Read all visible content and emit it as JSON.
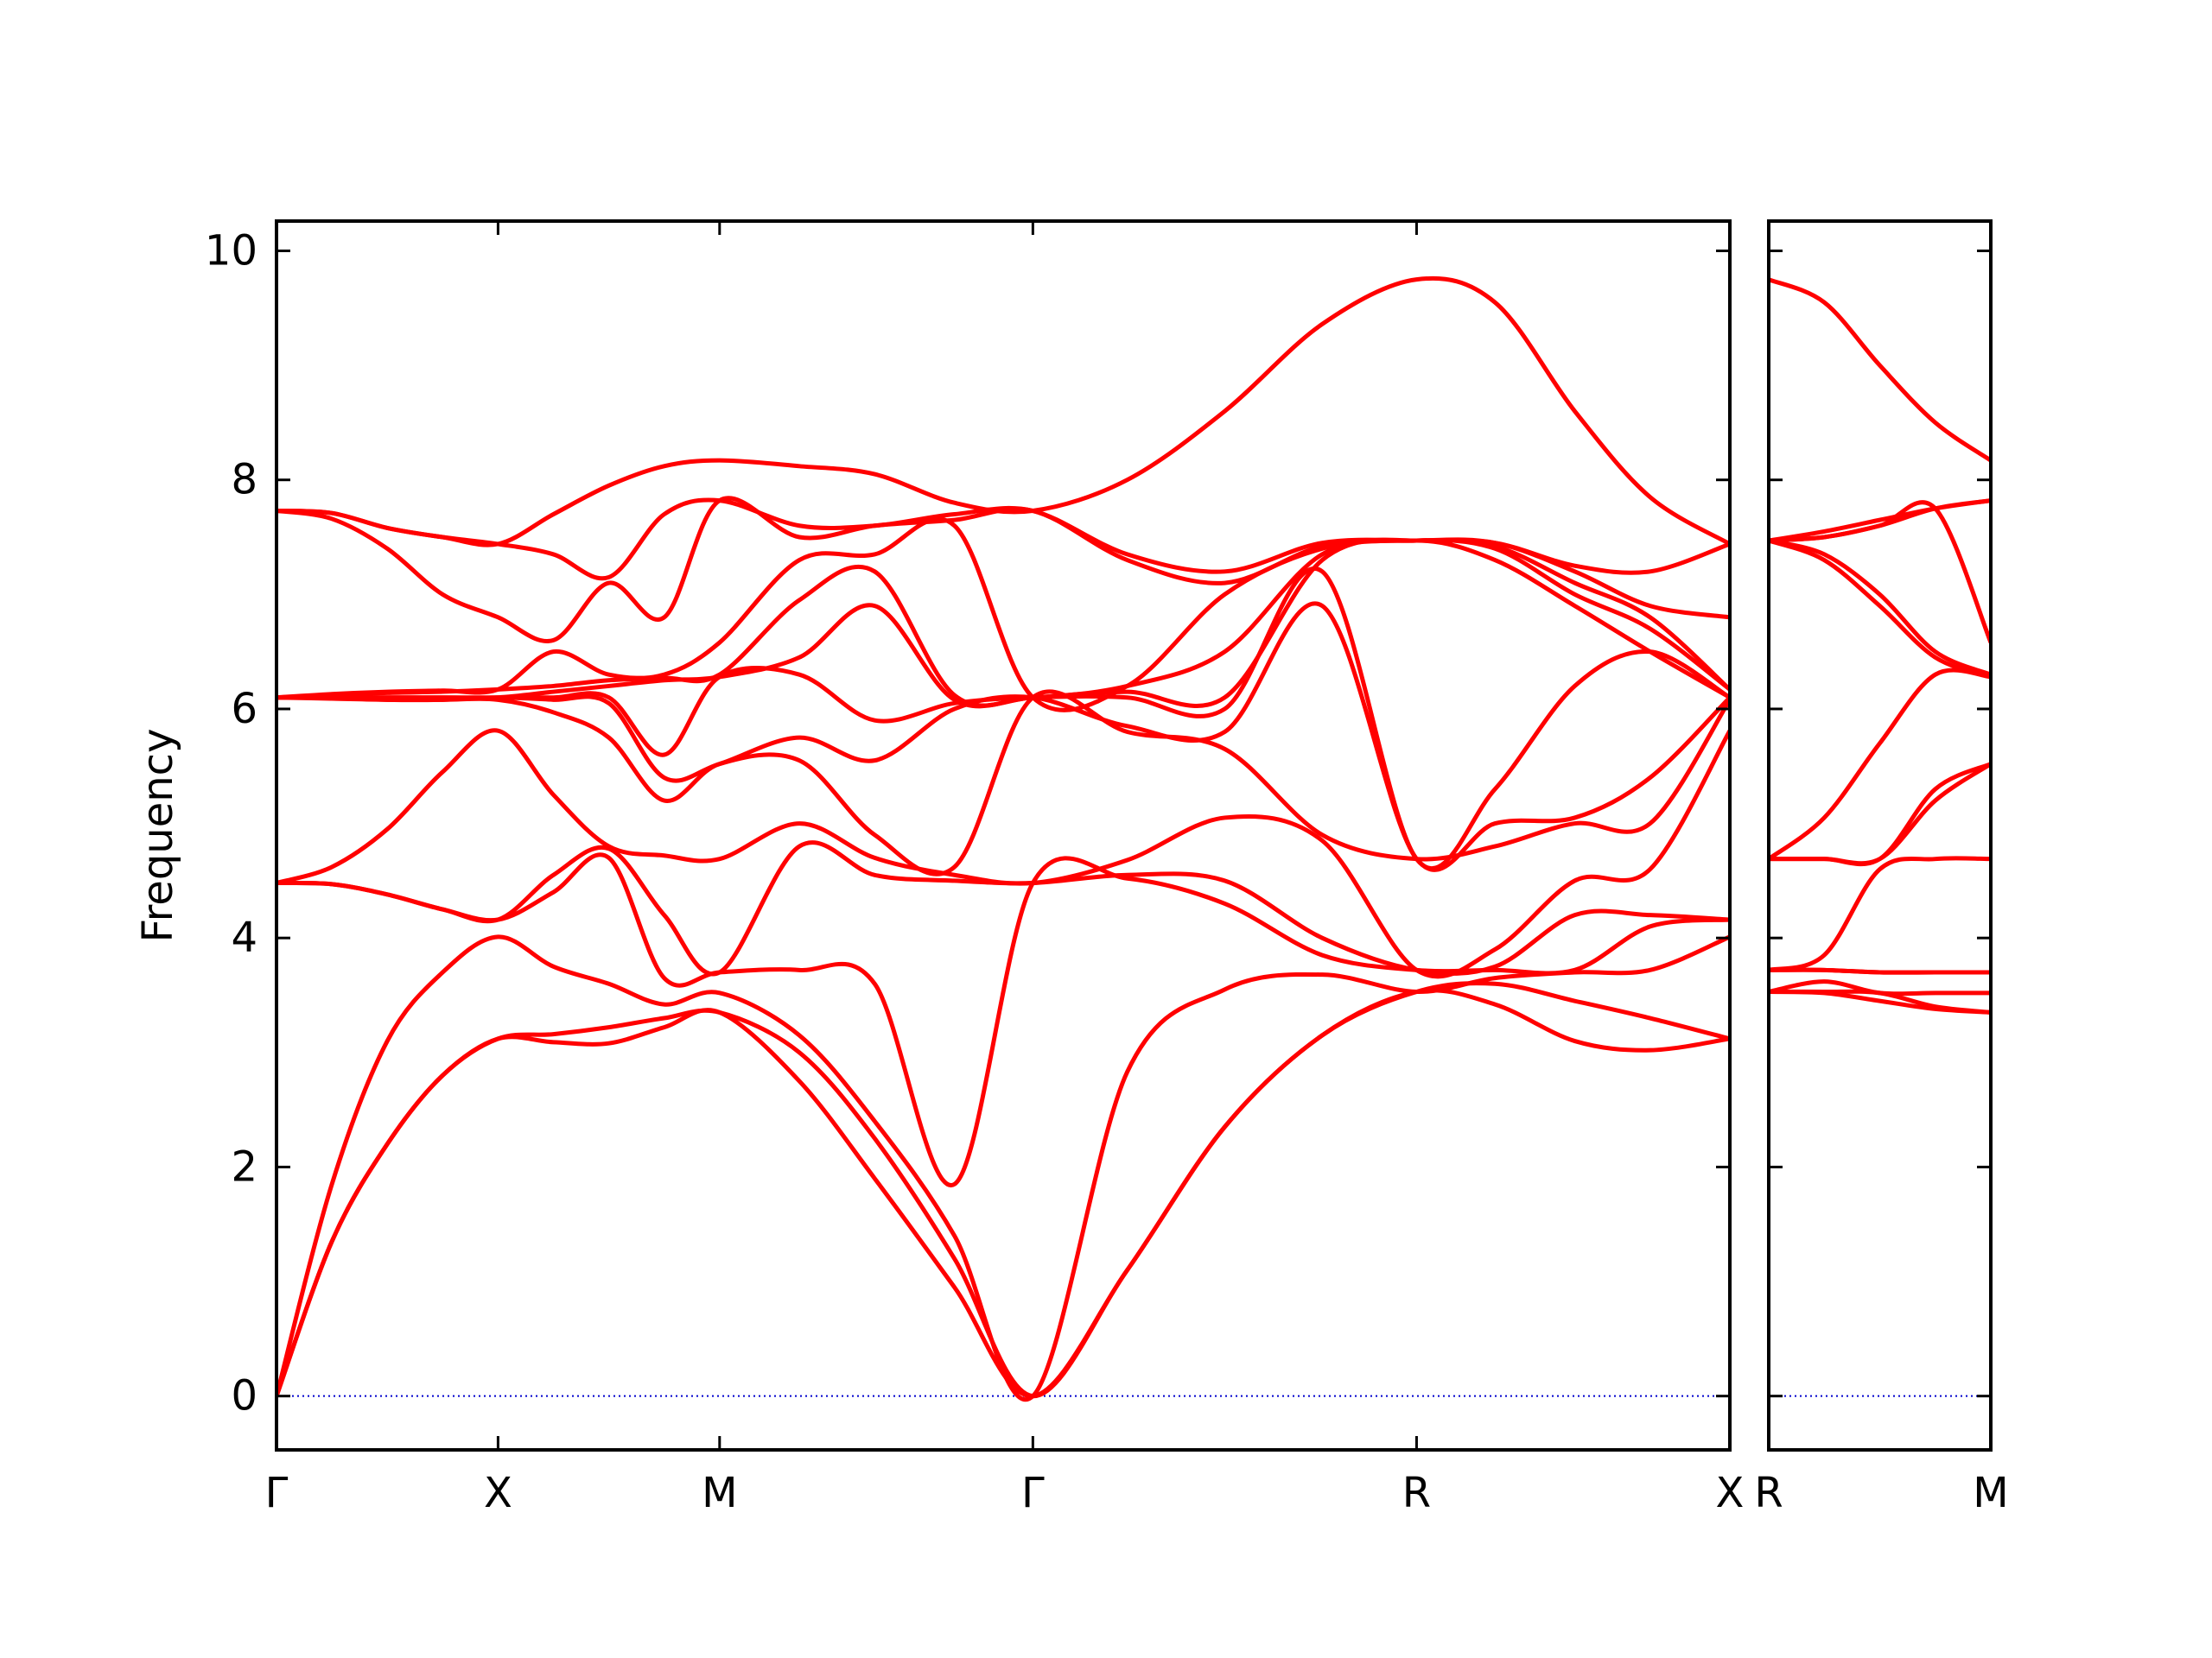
{
  "chart_data": [
    {
      "type": "line",
      "y_label": "Frequency",
      "color": "#ff0000",
      "xlim": [
        0,
        3.28
      ],
      "ylim": [
        -0.47,
        10.26
      ],
      "xticks": [
        {
          "value": 0,
          "label": "Γ"
        },
        {
          "value": 0.5,
          "label": "X"
        },
        {
          "value": 1.0,
          "label": "M"
        },
        {
          "value": 1.707,
          "label": "Γ"
        },
        {
          "value": 2.573,
          "label": "R"
        },
        {
          "value": 3.28,
          "label": "X"
        }
      ],
      "yticks": [
        0,
        2,
        4,
        6,
        8,
        10
      ],
      "ytick_labels": true,
      "reference_line": {
        "value": 0,
        "color": "#0000cc"
      },
      "x": [
        0,
        0.125,
        0.25,
        0.375,
        0.5,
        0.625,
        0.75,
        0.875,
        1.0,
        1.18,
        1.35,
        1.53,
        1.707,
        1.92,
        2.14,
        2.36,
        2.573,
        2.75,
        2.93,
        3.1,
        3.28
      ],
      "series": [
        {
          "values": [
            0,
            1.35,
            2.2,
            2.8,
            3.12,
            3.09,
            3.08,
            3.22,
            3.35,
            2.75,
            1.9,
            0.95,
            0,
            1.1,
            2.35,
            3.15,
            3.53,
            3.42,
            3.1,
            3.02,
            3.12
          ]
        },
        {
          "values": [
            0,
            1.35,
            2.2,
            2.8,
            3.12,
            3.16,
            3.22,
            3.3,
            3.35,
            3.0,
            2.25,
            1.2,
            0,
            1.1,
            2.35,
            3.15,
            3.53,
            3.6,
            3.45,
            3.3,
            3.12
          ]
        },
        {
          "values": [
            0,
            1.85,
            3.1,
            3.7,
            4.01,
            3.75,
            3.6,
            3.42,
            3.52,
            3.15,
            2.4,
            1.4,
            0,
            2.83,
            3.55,
            3.68,
            3.53,
            3.65,
            3.7,
            3.72,
            4.01
          ]
        },
        {
          "values": [
            4.48,
            4.47,
            4.38,
            4.25,
            4.16,
            4.4,
            4.7,
            3.65,
            3.7,
            3.72,
            3.6,
            1.85,
            4.48,
            4.52,
            4.3,
            3.85,
            3.72,
            3.72,
            3.72,
            4.1,
            4.16
          ]
        },
        {
          "values": [
            4.48,
            4.47,
            4.38,
            4.25,
            4.16,
            4.55,
            4.78,
            4.2,
            3.7,
            4.8,
            4.55,
            4.5,
            4.48,
            4.55,
            4.5,
            4.0,
            3.72,
            3.75,
            4.2,
            4.2,
            4.16
          ]
        },
        {
          "values": [
            4.48,
            4.62,
            4.95,
            5.45,
            5.81,
            5.25,
            4.8,
            4.72,
            4.69,
            5.0,
            4.7,
            4.55,
            4.48,
            4.68,
            5.05,
            4.85,
            3.72,
            3.9,
            4.5,
            4.6,
            5.81
          ]
        },
        {
          "values": [
            6.1,
            6.09,
            6.08,
            6.08,
            6.08,
            5.97,
            5.75,
            5.2,
            5.52,
            5.55,
            4.9,
            4.62,
            6.1,
            5.8,
            5.65,
            4.9,
            4.69,
            4.8,
            5.0,
            5.0,
            6.08
          ]
        },
        {
          "values": [
            6.1,
            6.1,
            6.08,
            6.08,
            6.1,
            6.08,
            6.05,
            5.4,
            5.52,
            5.75,
            5.55,
            6.0,
            6.1,
            5.85,
            5.8,
            6.9,
            4.69,
            5.0,
            5.05,
            5.4,
            6.1
          ]
        },
        {
          "values": [
            6.1,
            6.1,
            6.1,
            6.1,
            6.1,
            6.1,
            6.1,
            5.6,
            6.28,
            6.3,
            5.9,
            6.05,
            6.1,
            6.1,
            6.0,
            7.2,
            4.69,
            5.3,
            6.2,
            6.5,
            6.1
          ]
        },
        {
          "values": [
            6.1,
            6.1,
            6.1,
            6.1,
            6.1,
            6.15,
            6.2,
            6.25,
            6.28,
            6.45,
            6.9,
            6.08,
            6.1,
            6.15,
            6.1,
            7.3,
            7.47,
            7.3,
            6.9,
            6.5,
            6.1
          ]
        },
        {
          "values": [
            6.1,
            6.12,
            6.14,
            6.15,
            6.17,
            6.2,
            6.25,
            6.27,
            6.3,
            6.95,
            7.2,
            6.12,
            6.1,
            6.2,
            6.5,
            7.35,
            7.47,
            7.4,
            7.0,
            6.7,
            6.17
          ]
        },
        {
          "values": [
            6.1,
            6.13,
            6.15,
            6.16,
            6.17,
            6.5,
            6.3,
            6.3,
            6.58,
            7.3,
            7.35,
            7.6,
            6.1,
            6.2,
            7.0,
            7.4,
            7.47,
            7.42,
            7.1,
            6.8,
            6.17
          ]
        },
        {
          "values": [
            7.73,
            7.66,
            7.4,
            7.0,
            6.8,
            6.6,
            7.1,
            6.8,
            7.82,
            7.5,
            7.6,
            7.65,
            7.73,
            7.3,
            7.1,
            7.42,
            7.47,
            7.45,
            7.2,
            6.9,
            6.8
          ]
        },
        {
          "values": [
            7.73,
            7.71,
            7.58,
            7.5,
            7.44,
            7.35,
            7.15,
            7.7,
            7.82,
            7.6,
            7.6,
            7.7,
            7.73,
            7.35,
            7.2,
            7.45,
            7.47,
            7.45,
            7.25,
            7.2,
            7.44
          ]
        },
        {
          "values": [
            7.73,
            7.71,
            7.58,
            7.5,
            7.44,
            7.7,
            7.95,
            8.12,
            8.17,
            8.12,
            8.05,
            7.8,
            7.73,
            8.0,
            8.6,
            9.36,
            9.75,
            9.55,
            8.6,
            7.85,
            7.44
          ]
        }
      ]
    },
    {
      "type": "line",
      "color": "#ff0000",
      "xlim": [
        0,
        0.5
      ],
      "ylim": [
        -0.47,
        10.26
      ],
      "xticks": [
        {
          "value": 0,
          "label": "R"
        },
        {
          "value": 0.5,
          "label": "M"
        }
      ],
      "yticks": [
        0,
        2,
        4,
        6,
        8,
        10
      ],
      "ytick_labels": false,
      "reference_line": {
        "value": 0,
        "color": "#0000cc"
      },
      "x": [
        0,
        0.125,
        0.25,
        0.375,
        0.5
      ],
      "series": [
        {
          "values": [
            3.53,
            3.52,
            3.45,
            3.38,
            3.35
          ]
        },
        {
          "values": [
            3.53,
            3.53,
            3.52,
            3.4,
            3.35
          ]
        },
        {
          "values": [
            3.53,
            3.62,
            3.52,
            3.52,
            3.52
          ]
        },
        {
          "values": [
            3.72,
            3.72,
            3.7,
            3.7,
            3.7
          ]
        },
        {
          "values": [
            3.72,
            3.72,
            3.7,
            3.7,
            3.7
          ]
        },
        {
          "values": [
            3.72,
            3.85,
            4.6,
            4.69,
            4.69
          ]
        },
        {
          "values": [
            4.69,
            4.69,
            4.69,
            5.2,
            5.52
          ]
        },
        {
          "values": [
            4.69,
            4.69,
            4.69,
            5.3,
            5.52
          ]
        },
        {
          "values": [
            4.69,
            5.05,
            5.7,
            6.3,
            6.28
          ]
        },
        {
          "values": [
            7.47,
            7.3,
            6.9,
            6.45,
            6.28
          ]
        },
        {
          "values": [
            7.47,
            7.35,
            7.0,
            6.5,
            6.3
          ]
        },
        {
          "values": [
            7.47,
            7.5,
            7.6,
            7.75,
            6.58
          ]
        },
        {
          "values": [
            7.47,
            7.5,
            7.6,
            7.75,
            7.82
          ]
        },
        {
          "values": [
            7.47,
            7.55,
            7.65,
            7.75,
            7.82
          ]
        },
        {
          "values": [
            9.75,
            9.55,
            9.0,
            8.5,
            8.17
          ]
        }
      ]
    }
  ]
}
